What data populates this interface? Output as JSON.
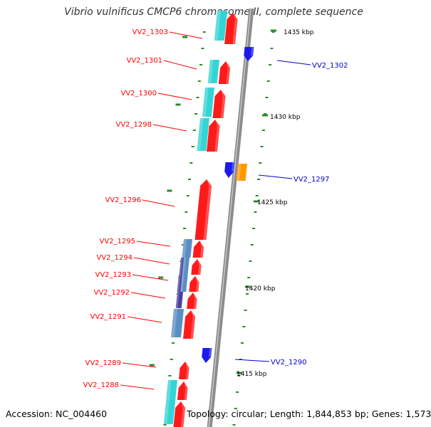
{
  "title": "Vibrio vulnificus CMCP6 chromosome II, complete sequence",
  "accession_text": "Accession: NC_004460",
  "topology_text": "Topology: circular; Length: 1,844,853 bp; Genes: 1,573",
  "colors": {
    "backbone": "#8c8c8c",
    "feature_red": "#ff1a1a",
    "feature_cyan": "#35d4d4",
    "feature_blue": "#1a1aee",
    "feature_orange": "#ff9900",
    "feature_steelblue": "#5b8ec4",
    "feature_indigo": "#4a3fa0",
    "left_label": "#ff0000",
    "right_label": "#0000c8",
    "tick": "#2a8a2a",
    "kbp_label": "#000000"
  },
  "kbp_labels": [
    "1435 kbp",
    "1430 kbp",
    "1425 kbp",
    "1420 kbp",
    "1415 kbp"
  ],
  "left_genes": [
    "VV2_1303",
    "VV2_1301",
    "VV2_1300",
    "VV2_1298",
    "VV2_1296",
    "VV2_1295",
    "VV2_1294",
    "VV2_1293",
    "VV2_1292",
    "VV2_1291",
    "VV2_1289",
    "VV2_1288"
  ],
  "right_genes": [
    "VV2_1302",
    "VV2_1297",
    "VV2_1290"
  ]
}
